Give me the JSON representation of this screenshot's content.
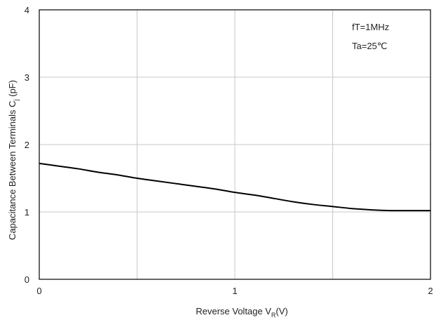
{
  "chart_data": {
    "type": "line",
    "x_range": [
      0,
      2
    ],
    "y_range": [
      0,
      4
    ],
    "x_ticks": [
      0,
      1,
      2
    ],
    "x_tick_labels": [
      "0",
      "1",
      "2"
    ],
    "y_ticks": [
      0,
      1,
      2,
      3,
      4
    ],
    "y_tick_labels": [
      "0",
      "1",
      "2",
      "3",
      "4"
    ],
    "x_grid": [
      0.5,
      1,
      1.5
    ],
    "y_grid": [
      1,
      2,
      3
    ],
    "grid": true,
    "xlabel": {
      "main": "Reverse Voltage V",
      "sub": "R",
      "tail": "(V)"
    },
    "ylabel": {
      "main": "Capacitance Between Terminals C",
      "sub": "j",
      "tail": " (pF)"
    },
    "annotations": [
      "fT=1MHz",
      "Ta=25℃"
    ],
    "annotation_position": "top-right",
    "series": [
      {
        "x": [
          0,
          0.1,
          0.2,
          0.3,
          0.4,
          0.5,
          0.6,
          0.7,
          0.8,
          0.9,
          1.0,
          1.1,
          1.2,
          1.3,
          1.4,
          1.5,
          1.6,
          1.7,
          1.8,
          1.9,
          2.0
        ],
        "y": [
          1.72,
          1.68,
          1.64,
          1.59,
          1.55,
          1.5,
          1.46,
          1.42,
          1.38,
          1.34,
          1.29,
          1.25,
          1.2,
          1.15,
          1.11,
          1.08,
          1.05,
          1.03,
          1.02,
          1.02,
          1.02
        ]
      }
    ]
  }
}
